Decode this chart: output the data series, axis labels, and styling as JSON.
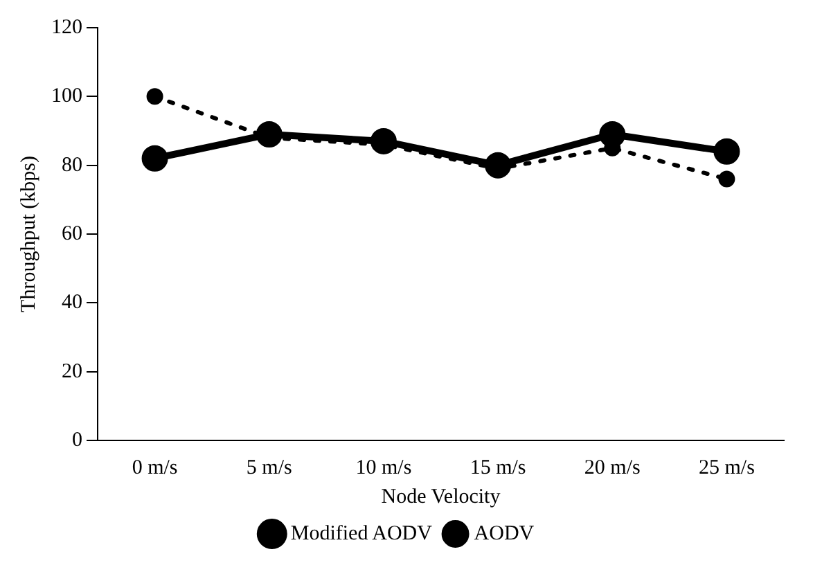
{
  "chart_data": {
    "type": "line",
    "xlabel": "Node Velocity",
    "ylabel": "Throughput (kbps)",
    "categories": [
      "0 m/s",
      "5 m/s",
      "10 m/s",
      "15 m/s",
      "20 m/s",
      "25 m/s"
    ],
    "series": [
      {
        "name": "Modified AODV",
        "color": "#000000",
        "values": [
          82,
          89,
          87,
          80,
          89,
          84
        ],
        "line_style": "solid"
      },
      {
        "name": "AODV",
        "color": "#000000",
        "values": [
          100,
          88,
          86,
          79,
          85,
          76
        ],
        "line_style": "dotted"
      }
    ],
    "ylim": [
      0,
      120
    ],
    "yticks": [
      0,
      20,
      40,
      60,
      80,
      100,
      120
    ],
    "legend": "bottom",
    "marker": "circle"
  }
}
